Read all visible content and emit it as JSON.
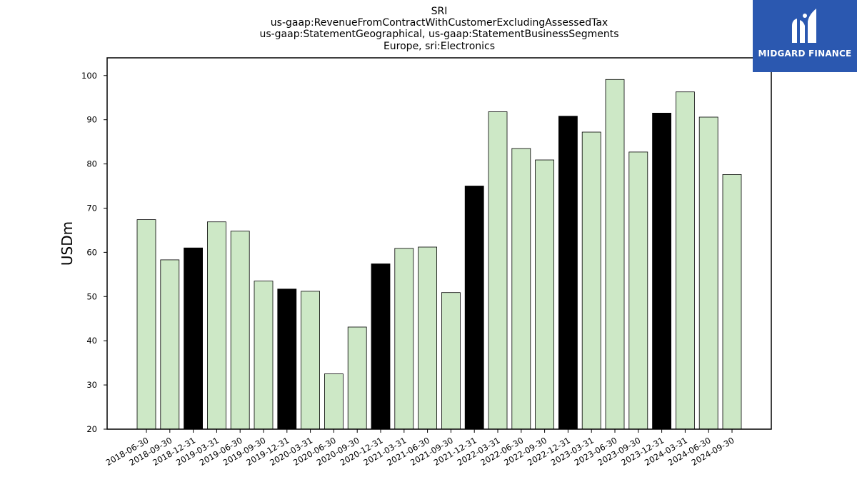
{
  "chart_data": {
    "type": "bar",
    "title_lines": [
      "SRI",
      "us-gaap:RevenueFromContractWithCustomerExcludingAssessedTax",
      "us-gaap:StatementGeographical, us-gaap:StatementBusinessSegments",
      "Europe, sri:Electronics"
    ],
    "ylabel": "USDm",
    "xlabel": "",
    "ylim": [
      20,
      104
    ],
    "yticks": [
      20,
      30,
      40,
      50,
      60,
      70,
      80,
      90,
      100
    ],
    "categories": [
      "2018-06-30",
      "2018-09-30",
      "2018-12-31",
      "2019-03-31",
      "2019-06-30",
      "2019-09-30",
      "2019-12-31",
      "2020-03-31",
      "2020-06-30",
      "2020-09-30",
      "2020-12-31",
      "2021-03-31",
      "2021-06-30",
      "2021-09-30",
      "2021-12-31",
      "2022-03-31",
      "2022-06-30",
      "2022-09-30",
      "2022-12-31",
      "2023-03-31",
      "2023-06-30",
      "2023-09-30",
      "2023-12-31",
      "2024-03-31",
      "2024-06-30",
      "2024-09-30"
    ],
    "values": [
      67.4,
      58.3,
      61.0,
      66.9,
      64.8,
      53.5,
      51.7,
      51.2,
      32.5,
      43.1,
      57.4,
      60.9,
      61.2,
      50.9,
      75.0,
      91.8,
      83.5,
      80.9,
      90.8,
      87.2,
      99.1,
      82.7,
      91.5,
      96.3,
      90.6,
      77.6
    ],
    "colors": {
      "quarter_bar": "#cde8c6",
      "year_end_bar": "#000000",
      "bar_edge": "#000000"
    },
    "grid": false,
    "legend": "none"
  },
  "logo": {
    "text": "MIDGARD FINANCE",
    "background": "#2b58b0"
  }
}
